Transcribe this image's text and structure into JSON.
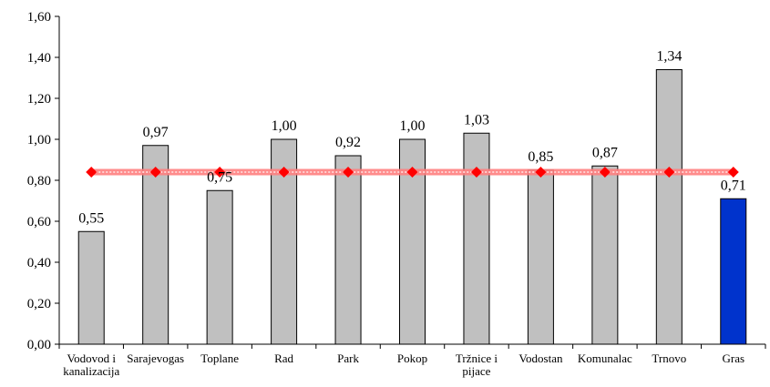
{
  "chart_data": {
    "type": "bar",
    "categories": [
      [
        "Vodovod i",
        "kanalizacija"
      ],
      [
        "Sarajevogas"
      ],
      [
        "Toplane"
      ],
      [
        "Rad"
      ],
      [
        "Park"
      ],
      [
        "Pokop"
      ],
      [
        "Tržnice i",
        "pijace"
      ],
      [
        "Vodostan"
      ],
      [
        "Komunalac"
      ],
      [
        "Trnovo"
      ],
      [
        "Gras"
      ]
    ],
    "values": [
      0.55,
      0.97,
      0.75,
      1.0,
      0.92,
      1.0,
      1.03,
      0.85,
      0.87,
      1.34,
      0.71
    ],
    "value_labels": [
      "0,55",
      "0,97",
      "0,75",
      "1,00",
      "0,92",
      "1,00",
      "1,03",
      "0,85",
      "0,87",
      "1,34",
      "0,71"
    ],
    "average_line": {
      "value": 0.84
    },
    "ylim": [
      0,
      1.6
    ],
    "yticks": [
      0,
      0.2,
      0.4,
      0.6,
      0.8,
      1.0,
      1.2,
      1.4,
      1.6
    ],
    "ytick_labels": [
      "0,00",
      "0,20",
      "0,40",
      "0,60",
      "0,80",
      "1,00",
      "1,20",
      "1,40",
      "1,60"
    ],
    "title": "",
    "xlabel": "",
    "ylabel": "",
    "grid": false,
    "legend": "none",
    "colors": {
      "bar": "#c0c0c0",
      "highlight_bar": "#0033cc",
      "highlight_index": 10,
      "line": "#ff8080",
      "marker": "#ff0000",
      "axis": "#000000"
    }
  }
}
